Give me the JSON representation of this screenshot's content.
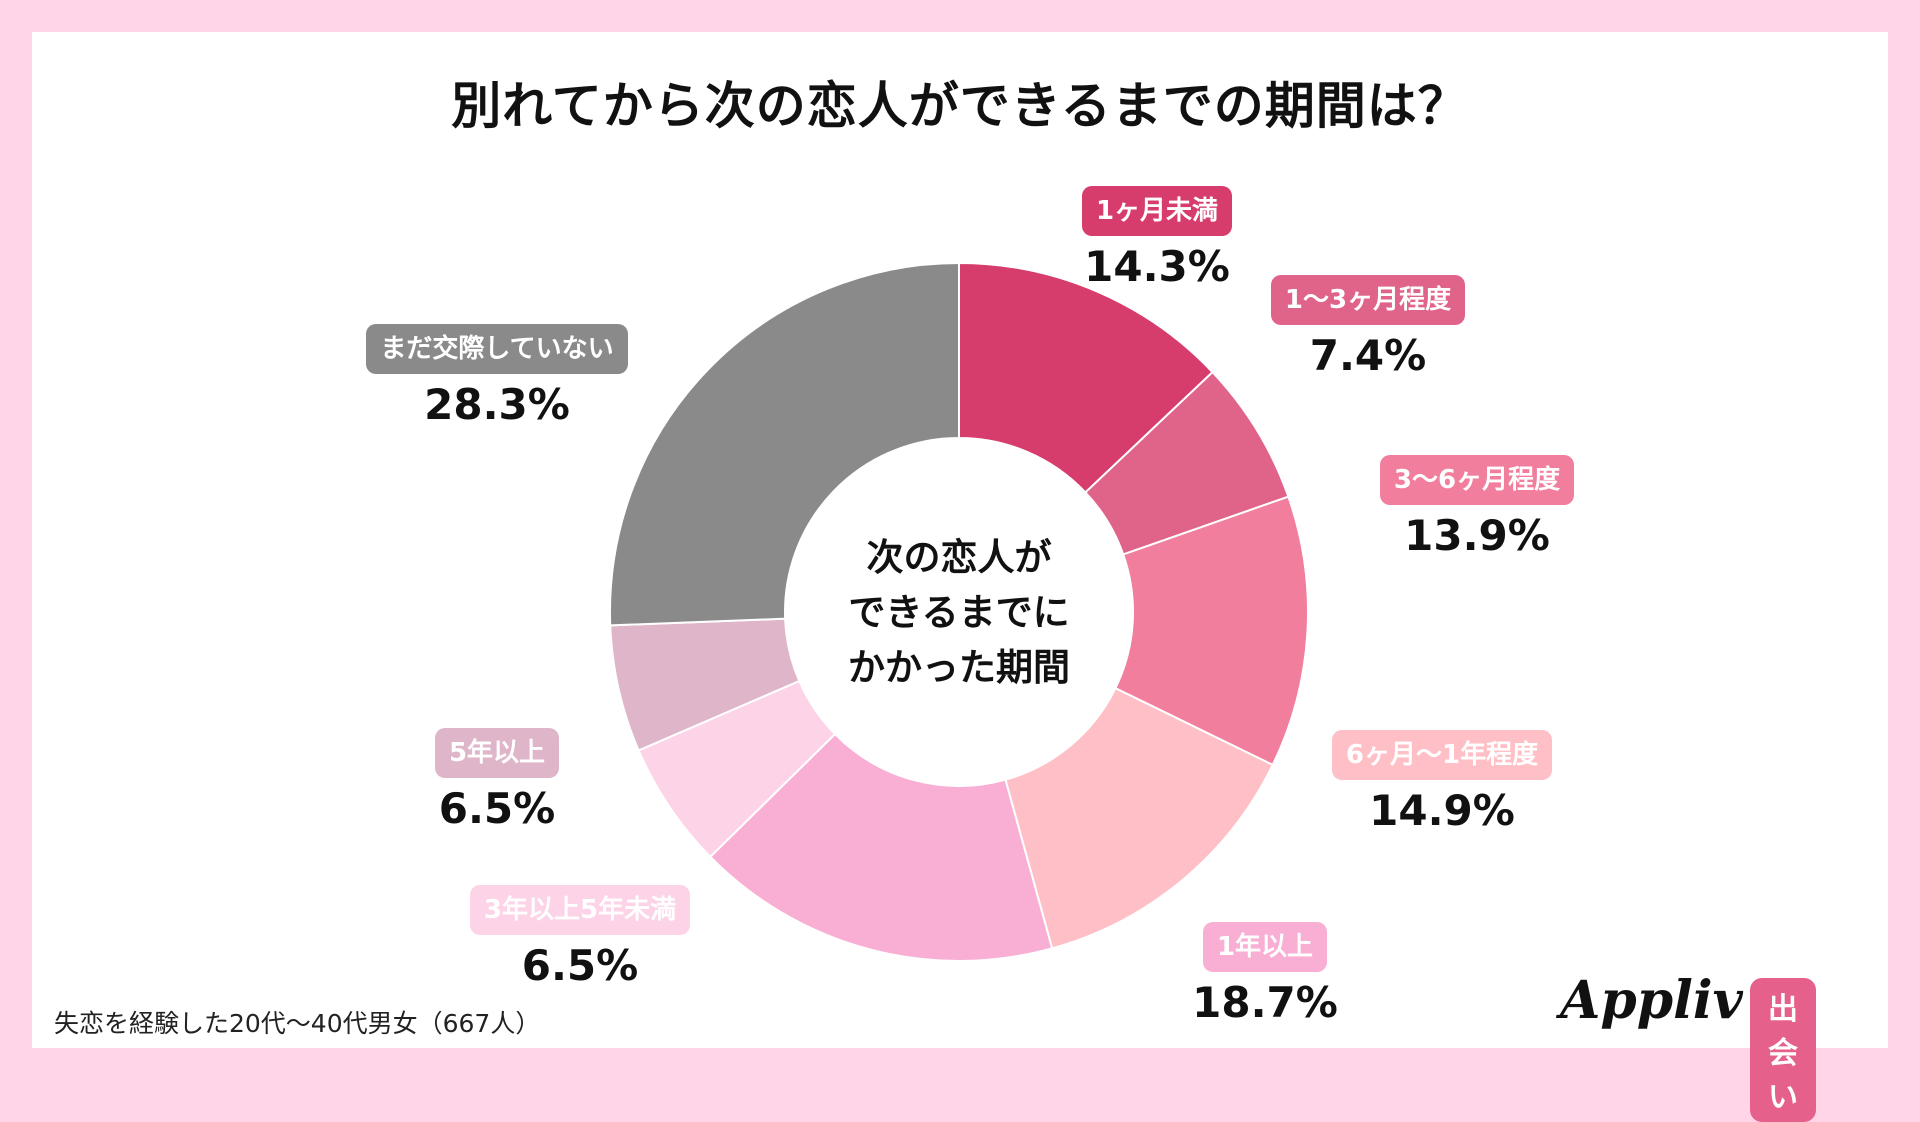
{
  "title": "別れてから次の恋人ができるまでの期間は？",
  "center_label": [
    "次の恋人が",
    "できるまでに",
    "かかった期間"
  ],
  "footnote": "失恋を経験した20代〜40代男女（667人）",
  "logo": {
    "brand": "Appliv",
    "badge": "出会い",
    "color": "#e5608a"
  },
  "chart_data": {
    "type": "pie",
    "donut": true,
    "start": "top",
    "direction": "clockwise",
    "categories": [
      "1ヶ月未満",
      "1〜3ヶ月程度",
      "3〜6ヶ月程度",
      "6ヶ月〜1年程度",
      "1年以上",
      "3年以上5年未満",
      "5年以上",
      "まだ交際していない"
    ],
    "values": [
      14.3,
      7.4,
      13.9,
      14.9,
      18.7,
      6.5,
      6.5,
      28.3
    ],
    "value_labels": [
      "14.3%",
      "7.4%",
      "13.9%",
      "14.9%",
      "18.7%",
      "6.5%",
      "6.5%",
      "28.3%"
    ],
    "colors": [
      "#d63c6c",
      "#e0638a",
      "#f07e9c",
      "#ffbfc6",
      "#f9aed3",
      "#fdd3e7",
      "#dfb6c9",
      "#8a8a8a"
    ]
  }
}
